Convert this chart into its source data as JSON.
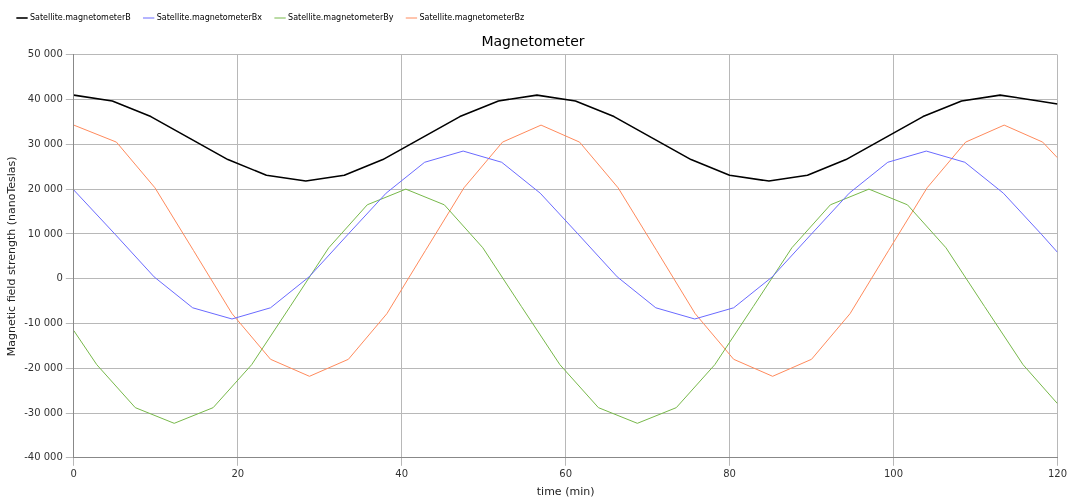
{
  "chart_data": {
    "type": "line",
    "title": "Magnetometer",
    "xlabel": "time (min)",
    "ylabel": "Magnetic field strength (nanoTeslas)",
    "xlim": [
      0,
      120
    ],
    "xticks": [
      0,
      20,
      40,
      60,
      80,
      100,
      120
    ],
    "ylim": [
      -40000,
      50000
    ],
    "yticks": [
      {
        "value": -40000,
        "label": "-40 000"
      },
      {
        "value": -30000,
        "label": "-30 000"
      },
      {
        "value": -20000,
        "label": "-20 000"
      },
      {
        "value": -10000,
        "label": "-10 000"
      },
      0,
      {
        "value": 10000,
        "label": "10 000"
      },
      {
        "value": 20000,
        "label": "20 000"
      },
      {
        "value": 30000,
        "label": "30 000"
      },
      {
        "value": 40000,
        "label": "40 000"
      },
      {
        "value": 50000,
        "label": "50 000"
      }
    ],
    "grid": true,
    "legend": "top left",
    "marker": "none",
    "line_style": "solid",
    "series": [
      {
        "name": "Satellite.magnetometerB",
        "color": "#000000",
        "x": [
          0,
          4.7,
          9.4,
          14.1,
          18.8,
          23.5,
          28.3,
          33,
          37.7,
          42.4,
          47.1,
          51.8,
          56.5,
          61.2,
          65.9,
          70.6,
          75.3,
          80,
          84.8,
          89.5,
          94.2,
          98.9,
          103.6,
          108.3,
          113,
          117.7,
          120
        ],
        "values": [
          41000,
          39700,
          36200,
          31400,
          26600,
          23100,
          21800,
          23100,
          26600,
          31400,
          36200,
          39700,
          41000,
          39700,
          36200,
          31400,
          26600,
          23100,
          21800,
          23100,
          26600,
          31400,
          36200,
          39700,
          41000,
          39700,
          39000
        ]
      },
      {
        "name": "Satellite.magnetometerBx",
        "color": "#6a6aff",
        "x": [
          0,
          5.1,
          9.8,
          14.5,
          19.3,
          24,
          28.7,
          33.4,
          38.1,
          42.8,
          47.5,
          52.2,
          56.9,
          61.6,
          66.3,
          71,
          75.75,
          80.5,
          85.2,
          89.9,
          94.6,
          99.3,
          104,
          108.7,
          113.4,
          118.1,
          120
        ],
        "values": [
          19800,
          9800,
          400,
          -6500,
          -9000,
          -6500,
          400,
          9800,
          19100,
          26000,
          28500,
          26000,
          19100,
          9800,
          400,
          -6500,
          -9000,
          -6500,
          400,
          9800,
          19100,
          26000,
          28500,
          26000,
          19100,
          9800,
          5900
        ]
      },
      {
        "name": "Satellite.magnetometerBy",
        "color": "#77b84a",
        "x": [
          0,
          2.8,
          7.5,
          12.25,
          17,
          21.7,
          26.4,
          31.1,
          35.8,
          40.5,
          45.2,
          49.9,
          54.6,
          59.3,
          64,
          68.75,
          73.5,
          78.2,
          82.9,
          87.6,
          92.3,
          97,
          101.7,
          106.4,
          111.1,
          115.8,
          120
        ],
        "values": [
          -11600,
          -19200,
          -28800,
          -32300,
          -28800,
          -19200,
          -6200,
          6900,
          16500,
          20000,
          16500,
          6900,
          -6200,
          -19200,
          -28800,
          -32300,
          -28800,
          -19200,
          -6200,
          6900,
          16500,
          20000,
          16500,
          6900,
          -6200,
          -19200,
          -27900
        ]
      },
      {
        "name": "Satellite.magnetometerBz",
        "color": "#ff8a5c",
        "x": [
          0,
          5.2,
          9.9,
          14.6,
          19.3,
          24,
          28.75,
          33.5,
          38.2,
          42.9,
          47.6,
          52.3,
          57,
          61.7,
          66.4,
          71.1,
          75.8,
          80.5,
          85.25,
          90,
          94.7,
          99.4,
          104.1,
          108.8,
          113.5,
          118.2,
          120
        ],
        "values": [
          34300,
          30500,
          20300,
          6300,
          -7800,
          -18000,
          -21800,
          -18000,
          -7800,
          6300,
          20300,
          30500,
          34300,
          30500,
          20300,
          6300,
          -7800,
          -18000,
          -21800,
          -18000,
          -7800,
          6300,
          20300,
          30500,
          34300,
          30500,
          27000
        ]
      }
    ]
  }
}
